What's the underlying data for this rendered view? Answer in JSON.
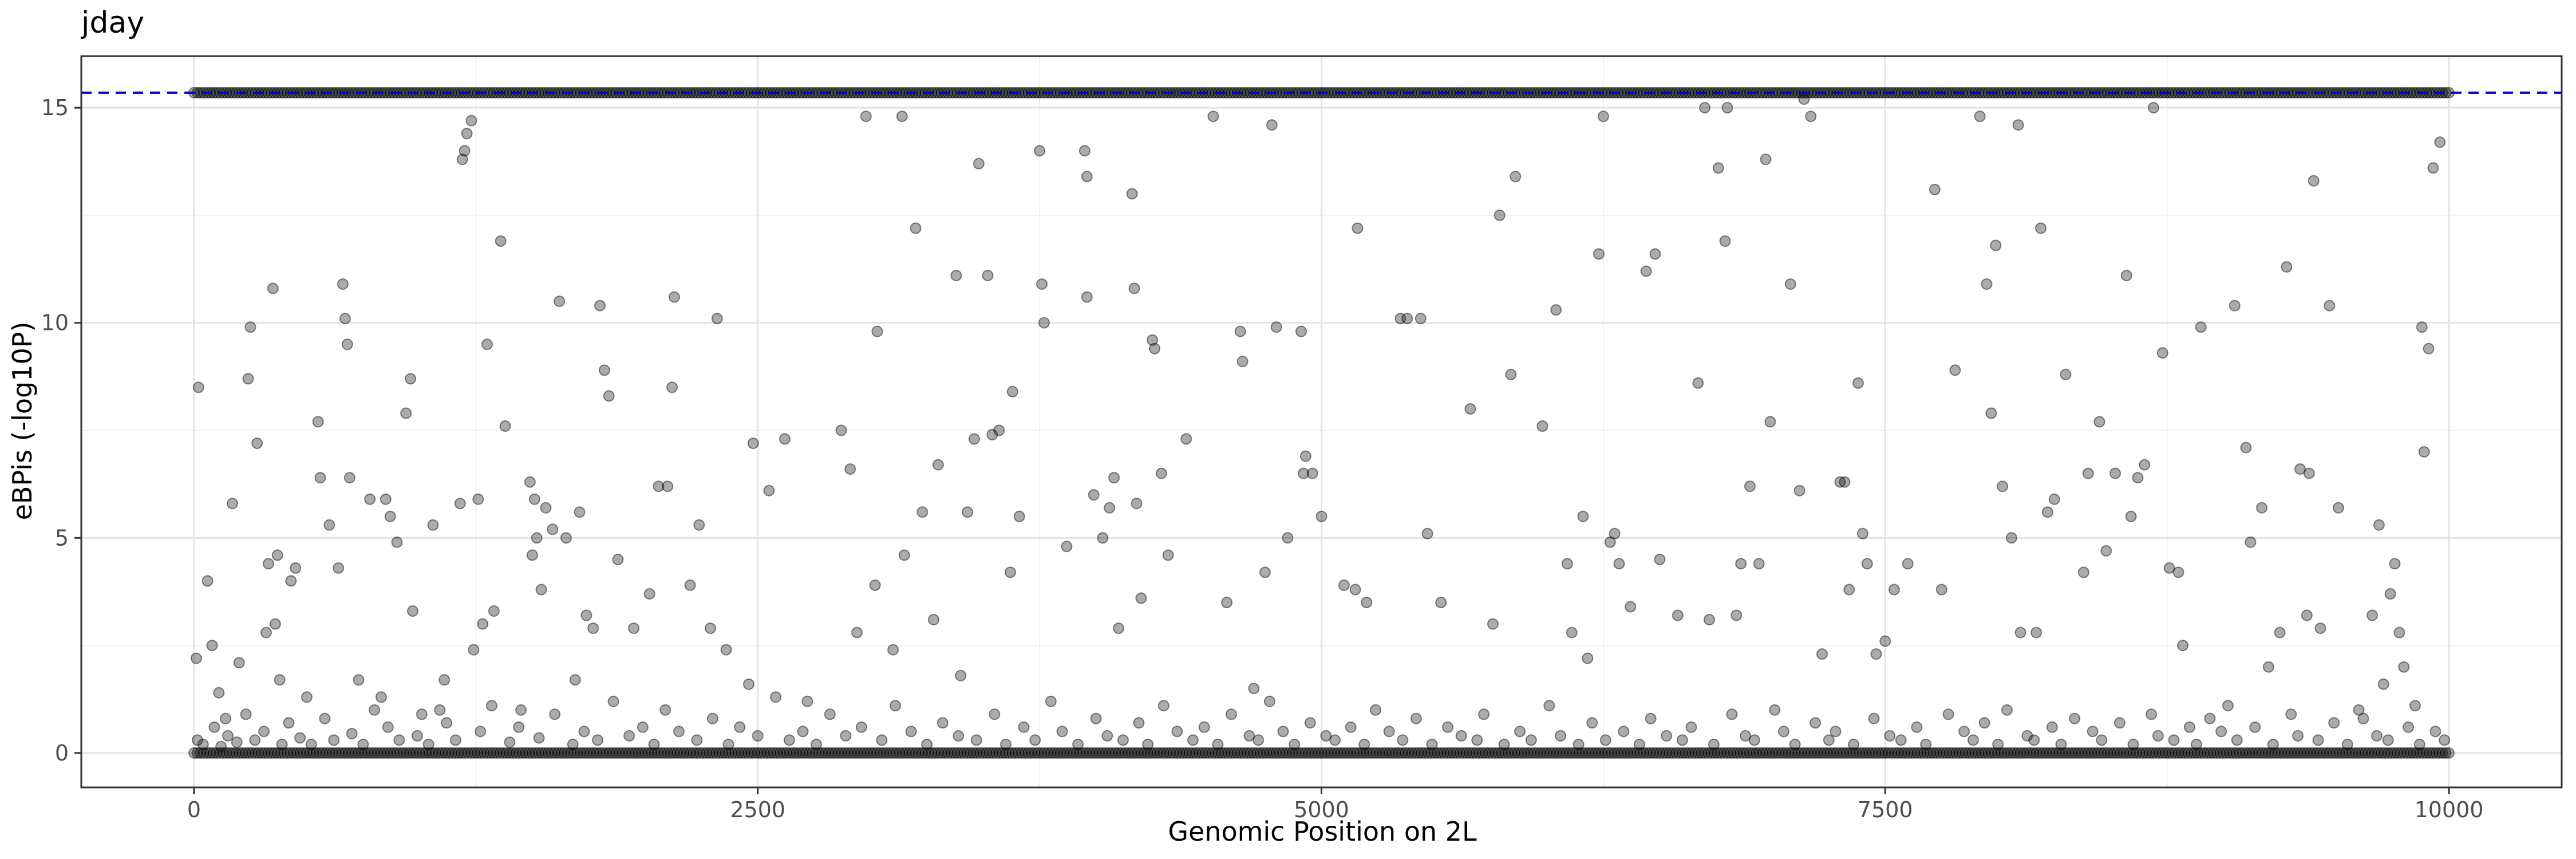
{
  "chart_data": {
    "type": "scatter",
    "title": "jday",
    "xlabel": "Genomic Position on 2L",
    "ylabel": "eBPis (-log10P)",
    "xlim": [
      -500,
      10500
    ],
    "ylim": [
      -0.8,
      16.2
    ],
    "x_ticks": [
      0,
      2500,
      5000,
      7500,
      10000
    ],
    "y_ticks": [
      0,
      5,
      10,
      15
    ],
    "threshold_line": {
      "y": 15.35,
      "style": "dashed",
      "color": "#0000cc"
    },
    "point_style": {
      "fill": "rgba(0,0,0,0.33)",
      "stroke": "rgba(0,0,0,0.45)"
    },
    "grid": true,
    "legend": "none",
    "dense_bands": [
      {
        "y": 15.35,
        "x_range": [
          0,
          10000
        ],
        "description": "saturated band"
      },
      {
        "y": 0.0,
        "x_range": [
          0,
          10000
        ],
        "description": "baseline band"
      }
    ],
    "points": [
      [
        20,
        8.5
      ],
      [
        10,
        2.2
      ],
      [
        60,
        4.0
      ],
      [
        80,
        2.5
      ],
      [
        110,
        1.4
      ],
      [
        140,
        0.8
      ],
      [
        170,
        5.8
      ],
      [
        200,
        2.1
      ],
      [
        240,
        8.7
      ],
      [
        250,
        9.9
      ],
      [
        280,
        7.2
      ],
      [
        320,
        2.8
      ],
      [
        330,
        4.4
      ],
      [
        350,
        10.8
      ],
      [
        360,
        3.0
      ],
      [
        370,
        4.6
      ],
      [
        380,
        1.7
      ],
      [
        430,
        4.0
      ],
      [
        450,
        4.3
      ],
      [
        500,
        1.3
      ],
      [
        550,
        7.7
      ],
      [
        560,
        6.4
      ],
      [
        600,
        5.3
      ],
      [
        640,
        4.3
      ],
      [
        660,
        10.9
      ],
      [
        670,
        10.1
      ],
      [
        680,
        9.5
      ],
      [
        690,
        6.4
      ],
      [
        730,
        1.7
      ],
      [
        780,
        5.9
      ],
      [
        830,
        1.3
      ],
      [
        850,
        5.9
      ],
      [
        870,
        5.5
      ],
      [
        900,
        4.9
      ],
      [
        940,
        7.9
      ],
      [
        960,
        8.7
      ],
      [
        970,
        3.3
      ],
      [
        1010,
        0.9
      ],
      [
        1060,
        5.3
      ],
      [
        1090,
        1.0
      ],
      [
        1110,
        1.7
      ],
      [
        1180,
        5.8
      ],
      [
        1190,
        13.8
      ],
      [
        1200,
        14.0
      ],
      [
        1210,
        14.4
      ],
      [
        1230,
        14.7
      ],
      [
        1240,
        2.4
      ],
      [
        1260,
        5.9
      ],
      [
        1280,
        3.0
      ],
      [
        1300,
        9.5
      ],
      [
        1330,
        3.3
      ],
      [
        1360,
        11.9
      ],
      [
        1380,
        7.6
      ],
      [
        1450,
        1.0
      ],
      [
        1490,
        6.3
      ],
      [
        1500,
        4.6
      ],
      [
        1510,
        5.9
      ],
      [
        1520,
        5.0
      ],
      [
        1540,
        3.8
      ],
      [
        1560,
        5.7
      ],
      [
        1590,
        5.2
      ],
      [
        1620,
        10.5
      ],
      [
        1650,
        5.0
      ],
      [
        1690,
        1.7
      ],
      [
        1710,
        5.6
      ],
      [
        1740,
        3.2
      ],
      [
        1770,
        2.9
      ],
      [
        1800,
        10.4
      ],
      [
        1820,
        8.9
      ],
      [
        1840,
        8.3
      ],
      [
        1880,
        4.5
      ],
      [
        1950,
        2.9
      ],
      [
        2020,
        3.7
      ],
      [
        2060,
        6.2
      ],
      [
        2100,
        6.2
      ],
      [
        2120,
        8.5
      ],
      [
        2130,
        10.6
      ],
      [
        2200,
        3.9
      ],
      [
        2240,
        5.3
      ],
      [
        2290,
        2.9
      ],
      [
        2320,
        10.1
      ],
      [
        2360,
        2.4
      ],
      [
        2460,
        1.6
      ],
      [
        2480,
        7.2
      ],
      [
        2550,
        6.1
      ],
      [
        2620,
        7.3
      ],
      [
        2720,
        1.2
      ],
      [
        2870,
        7.5
      ],
      [
        2910,
        6.6
      ],
      [
        2940,
        2.8
      ],
      [
        2980,
        14.8
      ],
      [
        3030,
        9.8
      ],
      [
        3020,
        3.9
      ],
      [
        3100,
        2.4
      ],
      [
        3140,
        14.8
      ],
      [
        3150,
        4.6
      ],
      [
        3200,
        12.2
      ],
      [
        3230,
        5.6
      ],
      [
        3280,
        3.1
      ],
      [
        3300,
        6.7
      ],
      [
        3380,
        11.1
      ],
      [
        3400,
        1.8
      ],
      [
        3430,
        5.6
      ],
      [
        3460,
        7.3
      ],
      [
        3480,
        13.7
      ],
      [
        3520,
        11.1
      ],
      [
        3540,
        7.4
      ],
      [
        3570,
        7.5
      ],
      [
        3630,
        8.4
      ],
      [
        3660,
        5.5
      ],
      [
        3620,
        4.2
      ],
      [
        3750,
        14.0
      ],
      [
        3760,
        10.9
      ],
      [
        3770,
        10.0
      ],
      [
        3870,
        4.8
      ],
      [
        3950,
        14.0
      ],
      [
        3960,
        13.4
      ],
      [
        3960,
        10.6
      ],
      [
        3990,
        6.0
      ],
      [
        4030,
        5.0
      ],
      [
        4060,
        5.7
      ],
      [
        4080,
        6.4
      ],
      [
        4100,
        2.9
      ],
      [
        4160,
        13.0
      ],
      [
        4170,
        10.8
      ],
      [
        4180,
        5.8
      ],
      [
        4200,
        3.6
      ],
      [
        4250,
        9.6
      ],
      [
        4260,
        9.4
      ],
      [
        4290,
        6.5
      ],
      [
        4320,
        4.6
      ],
      [
        4400,
        7.3
      ],
      [
        4520,
        14.8
      ],
      [
        4580,
        3.5
      ],
      [
        4640,
        9.8
      ],
      [
        4650,
        9.1
      ],
      [
        4700,
        1.5
      ],
      [
        4750,
        4.2
      ],
      [
        4780,
        14.6
      ],
      [
        4800,
        9.9
      ],
      [
        4850,
        5.0
      ],
      [
        4910,
        9.8
      ],
      [
        4920,
        6.5
      ],
      [
        4930,
        6.9
      ],
      [
        4960,
        6.5
      ],
      [
        5000,
        5.5
      ],
      [
        5100,
        3.9
      ],
      [
        5160,
        12.2
      ],
      [
        5150,
        3.8
      ],
      [
        5200,
        3.5
      ],
      [
        5350,
        10.1
      ],
      [
        5380,
        10.1
      ],
      [
        5440,
        10.1
      ],
      [
        5470,
        5.1
      ],
      [
        5530,
        3.5
      ],
      [
        5660,
        8.0
      ],
      [
        5760,
        3.0
      ],
      [
        5790,
        12.5
      ],
      [
        5840,
        8.8
      ],
      [
        5860,
        13.4
      ],
      [
        5980,
        7.6
      ],
      [
        6040,
        10.3
      ],
      [
        6090,
        4.4
      ],
      [
        6110,
        2.8
      ],
      [
        6160,
        5.5
      ],
      [
        6180,
        2.2
      ],
      [
        6230,
        11.6
      ],
      [
        6250,
        14.8
      ],
      [
        6280,
        4.9
      ],
      [
        6300,
        5.1
      ],
      [
        6320,
        4.4
      ],
      [
        6370,
        3.4
      ],
      [
        6440,
        11.2
      ],
      [
        6480,
        11.6
      ],
      [
        6500,
        4.5
      ],
      [
        6580,
        3.2
      ],
      [
        6670,
        8.6
      ],
      [
        6700,
        15.0
      ],
      [
        6720,
        3.1
      ],
      [
        6760,
        13.6
      ],
      [
        6790,
        11.9
      ],
      [
        6800,
        15.0
      ],
      [
        6840,
        3.2
      ],
      [
        6860,
        4.4
      ],
      [
        6900,
        6.2
      ],
      [
        6940,
        4.4
      ],
      [
        6970,
        13.8
      ],
      [
        6990,
        7.7
      ],
      [
        7080,
        10.9
      ],
      [
        7120,
        6.1
      ],
      [
        7140,
        15.2
      ],
      [
        7170,
        14.8
      ],
      [
        7220,
        2.3
      ],
      [
        7300,
        6.3
      ],
      [
        7320,
        6.3
      ],
      [
        7340,
        3.8
      ],
      [
        7380,
        8.6
      ],
      [
        7400,
        5.1
      ],
      [
        7420,
        4.4
      ],
      [
        7460,
        2.3
      ],
      [
        7500,
        2.6
      ],
      [
        7540,
        3.8
      ],
      [
        7600,
        4.4
      ],
      [
        7720,
        13.1
      ],
      [
        7750,
        3.8
      ],
      [
        7810,
        8.9
      ],
      [
        7920,
        14.8
      ],
      [
        7950,
        10.9
      ],
      [
        7970,
        7.9
      ],
      [
        7990,
        11.8
      ],
      [
        8020,
        6.2
      ],
      [
        8060,
        5.0
      ],
      [
        8090,
        14.6
      ],
      [
        8100,
        2.8
      ],
      [
        8170,
        2.8
      ],
      [
        8190,
        12.2
      ],
      [
        8220,
        5.6
      ],
      [
        8250,
        5.9
      ],
      [
        8300,
        8.8
      ],
      [
        8380,
        4.2
      ],
      [
        8400,
        6.5
      ],
      [
        8450,
        7.7
      ],
      [
        8480,
        4.7
      ],
      [
        8520,
        6.5
      ],
      [
        8570,
        11.1
      ],
      [
        8590,
        5.5
      ],
      [
        8620,
        6.4
      ],
      [
        8650,
        6.7
      ],
      [
        8690,
        15.0
      ],
      [
        8730,
        9.3
      ],
      [
        8760,
        4.3
      ],
      [
        8800,
        4.2
      ],
      [
        8820,
        2.5
      ],
      [
        8900,
        9.9
      ],
      [
        9020,
        1.1
      ],
      [
        9050,
        10.4
      ],
      [
        9100,
        7.1
      ],
      [
        9120,
        4.9
      ],
      [
        9170,
        5.7
      ],
      [
        9200,
        2.0
      ],
      [
        9250,
        2.8
      ],
      [
        9280,
        11.3
      ],
      [
        9340,
        6.6
      ],
      [
        9370,
        3.2
      ],
      [
        9380,
        6.5
      ],
      [
        9400,
        13.3
      ],
      [
        9430,
        2.9
      ],
      [
        9470,
        10.4
      ],
      [
        9510,
        5.7
      ],
      [
        9600,
        1.0
      ],
      [
        9660,
        3.2
      ],
      [
        9690,
        5.3
      ],
      [
        9710,
        1.6
      ],
      [
        9740,
        3.7
      ],
      [
        9760,
        4.4
      ],
      [
        9780,
        2.8
      ],
      [
        9800,
        2.0
      ],
      [
        9850,
        1.1
      ],
      [
        9880,
        9.9
      ],
      [
        9890,
        7.0
      ],
      [
        9910,
        9.4
      ],
      [
        9930,
        13.6
      ],
      [
        9960,
        14.2
      ],
      [
        15,
        0.3
      ],
      [
        40,
        0.2
      ],
      [
        90,
        0.6
      ],
      [
        120,
        0.15
      ],
      [
        150,
        0.4
      ],
      [
        190,
        0.25
      ],
      [
        230,
        0.9
      ],
      [
        270,
        0.3
      ],
      [
        310,
        0.5
      ],
      [
        390,
        0.2
      ],
      [
        420,
        0.7
      ],
      [
        470,
        0.35
      ],
      [
        520,
        0.2
      ],
      [
        580,
        0.8
      ],
      [
        620,
        0.3
      ],
      [
        700,
        0.45
      ],
      [
        750,
        0.2
      ],
      [
        800,
        1.0
      ],
      [
        860,
        0.6
      ],
      [
        910,
        0.3
      ],
      [
        990,
        0.4
      ],
      [
        1040,
        0.2
      ],
      [
        1120,
        0.7
      ],
      [
        1160,
        0.3
      ],
      [
        1270,
        0.5
      ],
      [
        1320,
        1.1
      ],
      [
        1400,
        0.25
      ],
      [
        1440,
        0.6
      ],
      [
        1530,
        0.35
      ],
      [
        1600,
        0.9
      ],
      [
        1680,
        0.2
      ],
      [
        1730,
        0.5
      ],
      [
        1790,
        0.3
      ],
      [
        1860,
        1.2
      ],
      [
        1930,
        0.4
      ],
      [
        1990,
        0.6
      ],
      [
        2040,
        0.2
      ],
      [
        2090,
        1.0
      ],
      [
        2150,
        0.5
      ],
      [
        2230,
        0.3
      ],
      [
        2300,
        0.8
      ],
      [
        2370,
        0.2
      ],
      [
        2420,
        0.6
      ],
      [
        2500,
        0.4
      ],
      [
        2580,
        1.3
      ],
      [
        2640,
        0.3
      ],
      [
        2700,
        0.5
      ],
      [
        2760,
        0.2
      ],
      [
        2820,
        0.9
      ],
      [
        2890,
        0.4
      ],
      [
        2960,
        0.6
      ],
      [
        3050,
        0.3
      ],
      [
        3110,
        1.1
      ],
      [
        3180,
        0.5
      ],
      [
        3250,
        0.2
      ],
      [
        3320,
        0.7
      ],
      [
        3390,
        0.4
      ],
      [
        3470,
        0.3
      ],
      [
        3550,
        0.9
      ],
      [
        3600,
        0.2
      ],
      [
        3680,
        0.6
      ],
      [
        3730,
        0.3
      ],
      [
        3800,
        1.2
      ],
      [
        3850,
        0.5
      ],
      [
        3920,
        0.2
      ],
      [
        4000,
        0.8
      ],
      [
        4050,
        0.4
      ],
      [
        4120,
        0.3
      ],
      [
        4190,
        0.7
      ],
      [
        4230,
        0.2
      ],
      [
        4300,
        1.1
      ],
      [
        4360,
        0.5
      ],
      [
        4430,
        0.3
      ],
      [
        4480,
        0.6
      ],
      [
        4540,
        0.2
      ],
      [
        4600,
        0.9
      ],
      [
        4680,
        0.4
      ],
      [
        4720,
        0.3
      ],
      [
        4770,
        1.2
      ],
      [
        4830,
        0.5
      ],
      [
        4880,
        0.2
      ],
      [
        4950,
        0.7
      ],
      [
        5020,
        0.4
      ],
      [
        5060,
        0.3
      ],
      [
        5130,
        0.6
      ],
      [
        5190,
        0.2
      ],
      [
        5240,
        1.0
      ],
      [
        5300,
        0.5
      ],
      [
        5360,
        0.3
      ],
      [
        5420,
        0.8
      ],
      [
        5490,
        0.2
      ],
      [
        5560,
        0.6
      ],
      [
        5620,
        0.4
      ],
      [
        5690,
        0.3
      ],
      [
        5720,
        0.9
      ],
      [
        5810,
        0.2
      ],
      [
        5880,
        0.5
      ],
      [
        5930,
        0.3
      ],
      [
        6010,
        1.1
      ],
      [
        6060,
        0.4
      ],
      [
        6140,
        0.2
      ],
      [
        6200,
        0.7
      ],
      [
        6260,
        0.3
      ],
      [
        6340,
        0.5
      ],
      [
        6410,
        0.2
      ],
      [
        6460,
        0.8
      ],
      [
        6530,
        0.4
      ],
      [
        6600,
        0.3
      ],
      [
        6640,
        0.6
      ],
      [
        6740,
        0.2
      ],
      [
        6820,
        0.9
      ],
      [
        6880,
        0.4
      ],
      [
        6920,
        0.3
      ],
      [
        7010,
        1.0
      ],
      [
        7050,
        0.5
      ],
      [
        7100,
        0.2
      ],
      [
        7190,
        0.7
      ],
      [
        7250,
        0.3
      ],
      [
        7280,
        0.5
      ],
      [
        7360,
        0.2
      ],
      [
        7450,
        0.8
      ],
      [
        7520,
        0.4
      ],
      [
        7570,
        0.3
      ],
      [
        7640,
        0.6
      ],
      [
        7680,
        0.2
      ],
      [
        7780,
        0.9
      ],
      [
        7850,
        0.5
      ],
      [
        7890,
        0.3
      ],
      [
        7940,
        0.7
      ],
      [
        8000,
        0.2
      ],
      [
        8040,
        1.0
      ],
      [
        8130,
        0.4
      ],
      [
        8160,
        0.3
      ],
      [
        8240,
        0.6
      ],
      [
        8280,
        0.2
      ],
      [
        8340,
        0.8
      ],
      [
        8420,
        0.5
      ],
      [
        8460,
        0.3
      ],
      [
        8540,
        0.7
      ],
      [
        8600,
        0.2
      ],
      [
        8680,
        0.9
      ],
      [
        8710,
        0.4
      ],
      [
        8780,
        0.3
      ],
      [
        8850,
        0.6
      ],
      [
        8880,
        0.2
      ],
      [
        8940,
        0.8
      ],
      [
        8990,
        0.5
      ],
      [
        9060,
        0.3
      ],
      [
        9140,
        0.6
      ],
      [
        9220,
        0.2
      ],
      [
        9300,
        0.9
      ],
      [
        9330,
        0.4
      ],
      [
        9420,
        0.3
      ],
      [
        9490,
        0.7
      ],
      [
        9550,
        0.2
      ],
      [
        9620,
        0.8
      ],
      [
        9680,
        0.4
      ],
      [
        9730,
        0.3
      ],
      [
        9820,
        0.6
      ],
      [
        9870,
        0.2
      ],
      [
        9940,
        0.5
      ],
      [
        9980,
        0.3
      ]
    ]
  }
}
